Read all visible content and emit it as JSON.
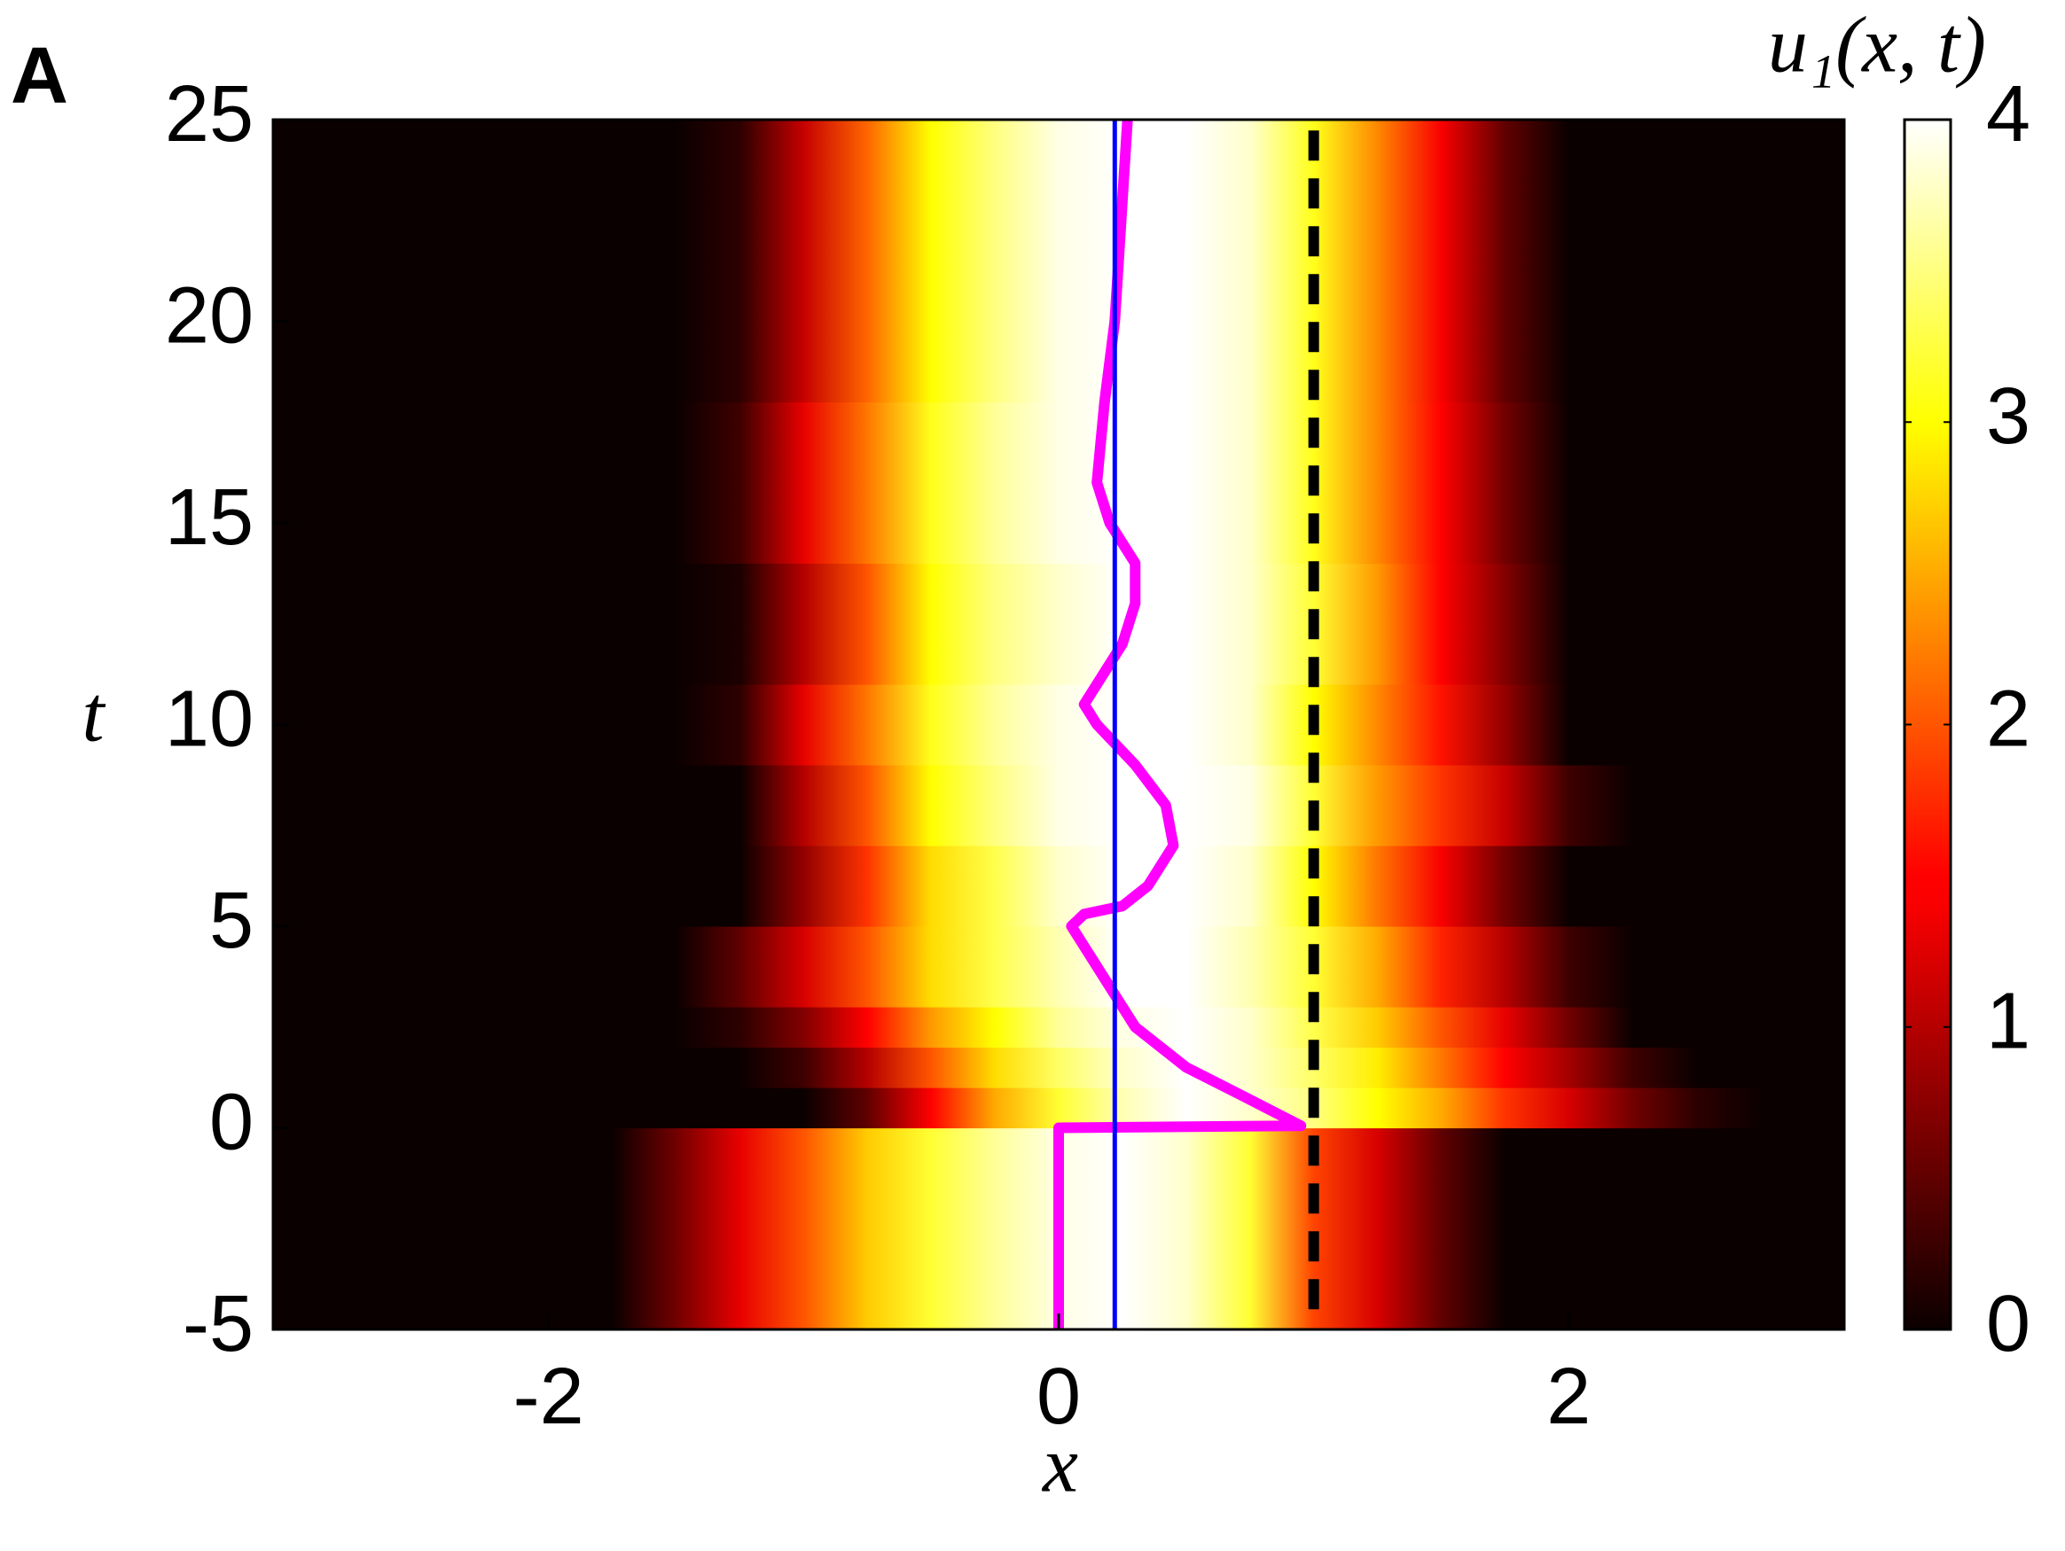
{
  "panel_label": "A",
  "chart_data": {
    "type": "heatmap",
    "xlabel": "x",
    "ylabel": "t",
    "colorbar_label": "u₁(x, t)",
    "xlim": [
      -3.08,
      3.08
    ],
    "ylim": [
      -5,
      25
    ],
    "xticks": [
      -2,
      0,
      2
    ],
    "yticks": [
      -5,
      0,
      5,
      10,
      15,
      20,
      25
    ],
    "colormap": "hot",
    "clim": [
      0,
      4
    ],
    "cticks": [
      0,
      1,
      2,
      3,
      4
    ],
    "x": [
      -2,
      -1.75,
      -1.5,
      -1.25,
      -1,
      -0.75,
      -0.5,
      -0.25,
      0,
      0.25,
      0.5,
      0.75,
      1,
      1.25,
      1.5,
      1.75,
      2,
      2.25,
      2.5,
      2.75,
      3
    ],
    "t_edges": [
      -5,
      0,
      1,
      2,
      3,
      5,
      7,
      9,
      11,
      14,
      18,
      25
    ],
    "z": [
      [
        0,
        0,
        0.6,
        1.3,
        2,
        2.7,
        3.2,
        3.6,
        3.9,
        4,
        3.8,
        3.2,
        1.9,
        1.2,
        0.5,
        0,
        0,
        0,
        0,
        0,
        0
      ],
      [
        0,
        0,
        0,
        0,
        0,
        0.5,
        1.5,
        2.5,
        3.2,
        3.7,
        4,
        3.8,
        3.5,
        3,
        2.5,
        1.8,
        1.2,
        0.6,
        0.2,
        0,
        0
      ],
      [
        0,
        0,
        0,
        0,
        0.3,
        1,
        2,
        2.8,
        3.4,
        3.8,
        4,
        3.8,
        3.4,
        2.9,
        2.2,
        1.5,
        0.9,
        0.3,
        0,
        0,
        0
      ],
      [
        0,
        0,
        0,
        0.2,
        0.7,
        1.5,
        2.4,
        3,
        3.6,
        3.9,
        4,
        3.8,
        3.3,
        2.7,
        2,
        1.3,
        0.6,
        0,
        0,
        0,
        0
      ],
      [
        0,
        0,
        0,
        0.5,
        1.2,
        2,
        2.8,
        3.3,
        3.7,
        4,
        4,
        3.7,
        3.2,
        2.5,
        1.7,
        1,
        0.3,
        0,
        0,
        0,
        0
      ],
      [
        0,
        0,
        0,
        0,
        0.8,
        1.8,
        2.8,
        3.3,
        3.8,
        4,
        4,
        3.8,
        3,
        2.2,
        1.4,
        0.6,
        0,
        0,
        0,
        0,
        0
      ],
      [
        0,
        0,
        0,
        0,
        1,
        2,
        3,
        3.5,
        3.9,
        4,
        4,
        3.9,
        3.2,
        2.4,
        1.8,
        1.1,
        0.3,
        0,
        0,
        0,
        0
      ],
      [
        0,
        0,
        0,
        0.2,
        1.3,
        2.2,
        3.1,
        3.6,
        3.9,
        4,
        4,
        3.8,
        3,
        2.3,
        1.6,
        0.8,
        0,
        0,
        0,
        0,
        0
      ],
      [
        0,
        0,
        0,
        0.1,
        1,
        2,
        3,
        3.5,
        3.8,
        4,
        4,
        3.8,
        3.2,
        2.4,
        1.5,
        0.7,
        0,
        0,
        0,
        0,
        0
      ],
      [
        0,
        0,
        0,
        0.3,
        1.3,
        2.2,
        3.1,
        3.6,
        3.9,
        4,
        4,
        3.8,
        3.1,
        2.3,
        1.5,
        0.6,
        0,
        0,
        0,
        0,
        0
      ],
      [
        0,
        0,
        0,
        0.2,
        1.1,
        2.1,
        3,
        3.5,
        3.9,
        4,
        4,
        3.8,
        3.1,
        2.3,
        1.4,
        0.5,
        0,
        0,
        0,
        0,
        0
      ]
    ],
    "lines": [
      {
        "color": "#ff00ff",
        "width": 12,
        "x": [
          0,
          0,
          0.95,
          0.75,
          0.5,
          0.3,
          0.2,
          0.1,
          0.05,
          0.1,
          0.25,
          0.35,
          0.45,
          0.42,
          0.3,
          0.15,
          0.1,
          0.15,
          0.25,
          0.3,
          0.3,
          0.2,
          0.15,
          0.18,
          0.22,
          0.25,
          0.27
        ],
        "y": [
          -5,
          0,
          0.05,
          0.7,
          1.5,
          2.5,
          3.5,
          4.5,
          5,
          5.3,
          5.5,
          6,
          7,
          8,
          9,
          10,
          10.5,
          11,
          12,
          13,
          14,
          15,
          16,
          18,
          20,
          23,
          25
        ]
      },
      {
        "color": "#0000ff",
        "width": 5,
        "x": [
          0.22,
          0.22
        ],
        "y": [
          -5,
          25
        ]
      },
      {
        "color": "#000000",
        "width": 12,
        "dashed": true,
        "x": [
          1,
          1
        ],
        "y": [
          -4.5,
          24.8
        ]
      }
    ]
  }
}
